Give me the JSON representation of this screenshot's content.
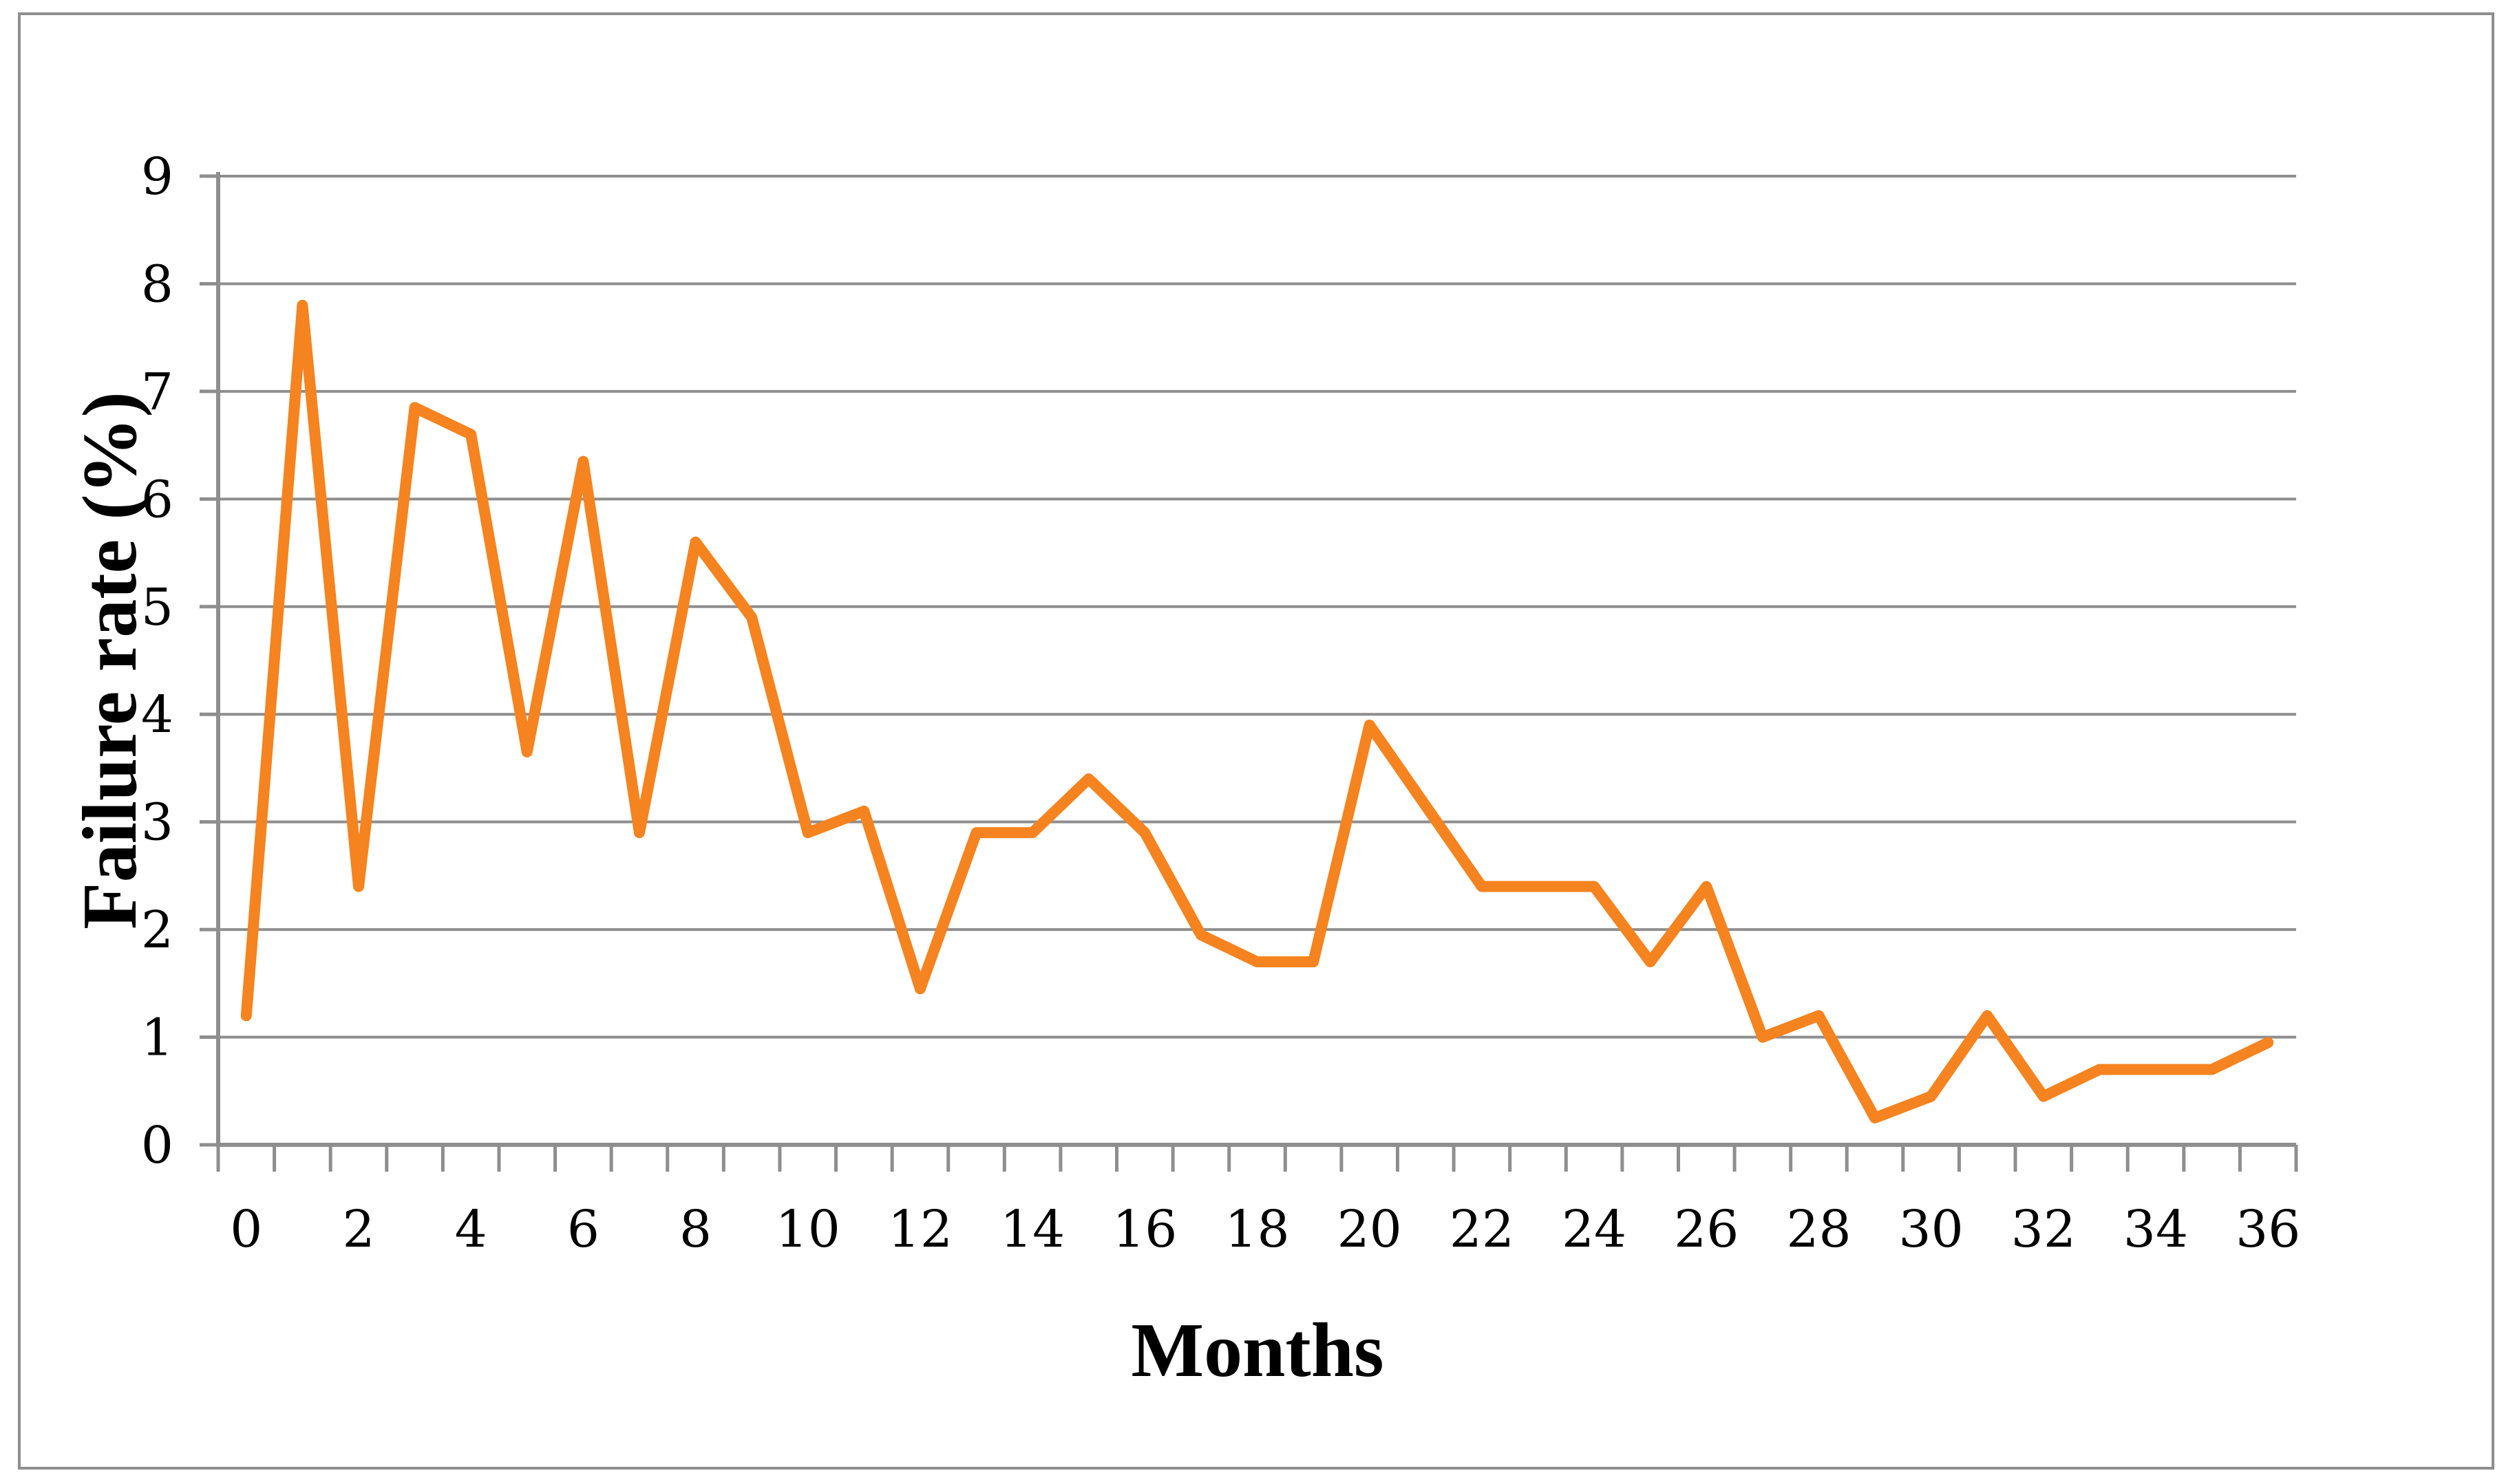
{
  "page": {
    "background": "#ffffff",
    "frame_border_color": "#8E8E8E"
  },
  "chart_data": {
    "type": "line",
    "title": "",
    "xlabel": "Months",
    "ylabel": "Failure rate (%)",
    "x": [
      0,
      1,
      2,
      3,
      4,
      5,
      6,
      7,
      8,
      9,
      10,
      11,
      12,
      13,
      14,
      15,
      16,
      17,
      18,
      19,
      20,
      21,
      22,
      23,
      24,
      25,
      26,
      27,
      28,
      29,
      30,
      31,
      32,
      33,
      34,
      35,
      36
    ],
    "series": [
      {
        "name": "Failure rate",
        "color": "#F5831F",
        "values": [
          1.2,
          7.8,
          2.4,
          6.85,
          6.6,
          3.65,
          6.35,
          2.9,
          5.6,
          4.9,
          2.9,
          3.1,
          1.45,
          2.9,
          2.9,
          3.4,
          2.9,
          1.95,
          1.7,
          1.7,
          3.9,
          3.15,
          2.4,
          2.4,
          2.4,
          1.7,
          2.4,
          1.0,
          1.2,
          0.25,
          0.45,
          1.2,
          0.45,
          0.7,
          0.7,
          0.7,
          0.95
        ]
      }
    ],
    "ylim": [
      0,
      9
    ],
    "y_tick_labels": [
      0,
      1,
      2,
      3,
      4,
      5,
      6,
      7,
      8,
      9
    ],
    "x_tick_labels": [
      0,
      2,
      4,
      6,
      8,
      10,
      12,
      14,
      16,
      18,
      20,
      22,
      24,
      26,
      28,
      30,
      32,
      34,
      36
    ],
    "grid": "horizontal",
    "grid_color": "#8E8E8E",
    "axis_color": "#8E8E8E",
    "line_width": 16,
    "legend_position": "none"
  }
}
